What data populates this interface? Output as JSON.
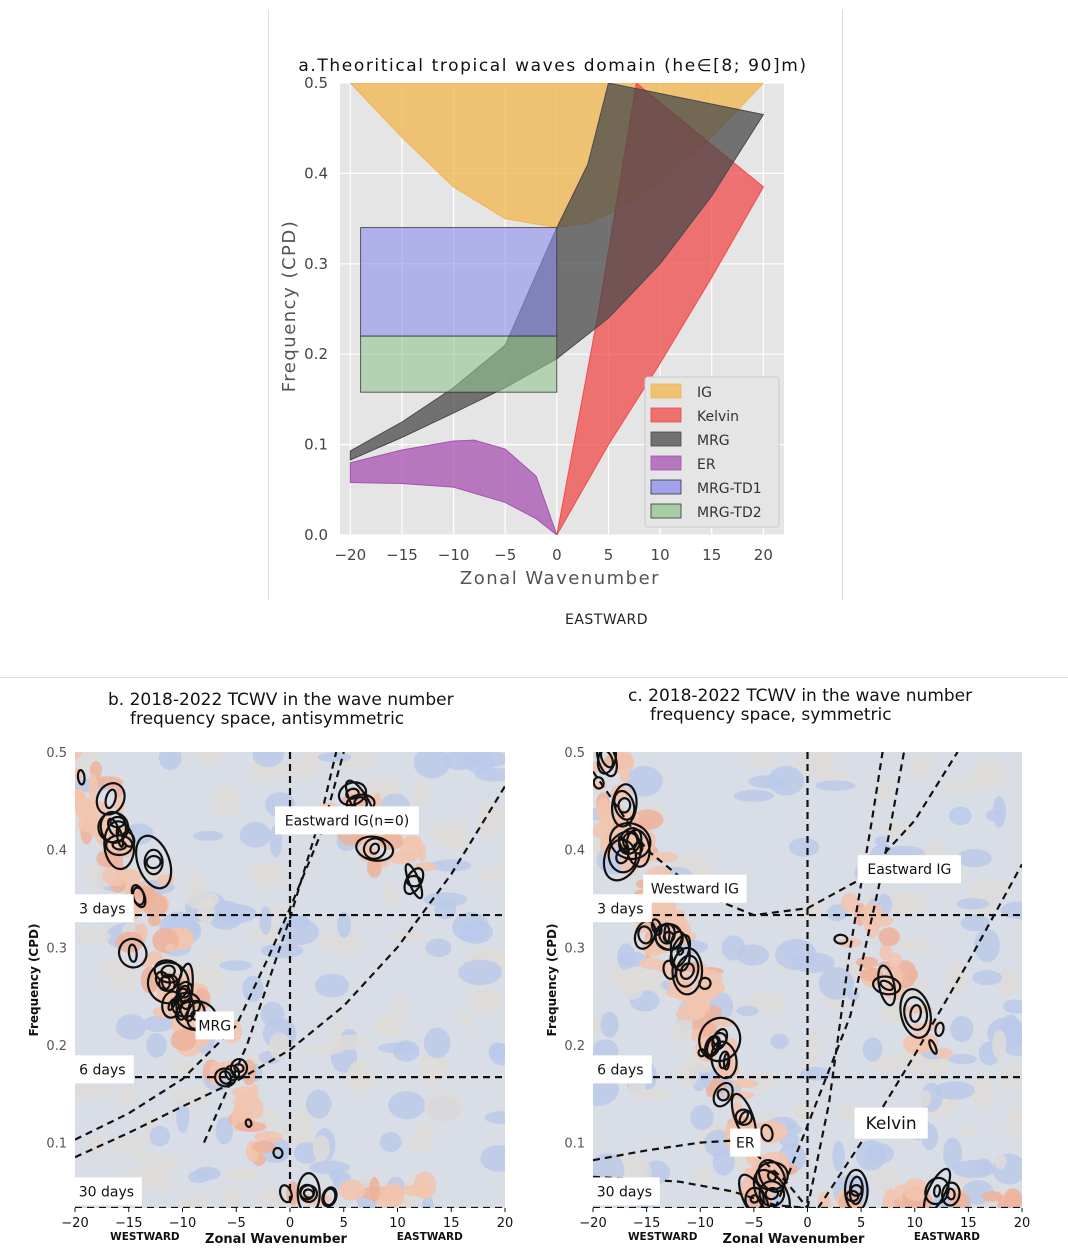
{
  "figure": {
    "eastward_caption": "EASTWARD"
  },
  "chart_data": [
    {
      "type": "area",
      "title": "a.Theoritical tropical waves domain (he∈[8; 90]m)",
      "xlabel": "Zonal Wavenumber",
      "ylabel": "Frequency (CPD)",
      "xlim": [
        -21,
        22
      ],
      "ylim": [
        0,
        0.5
      ],
      "xticks": [
        -20,
        -15,
        -10,
        -5,
        0,
        5,
        10,
        15,
        20
      ],
      "xtick_labels": [
        "−20",
        "−15",
        "−10",
        "−5",
        "0",
        "5",
        "10",
        "15",
        "20"
      ],
      "yticks": [
        0.0,
        0.1,
        0.2,
        0.3,
        0.4,
        0.5
      ],
      "ytick_labels": [
        "0.0",
        "0.1",
        "0.2",
        "0.3",
        "0.4",
        "0.5"
      ],
      "grid": true,
      "legend_position": "lower-right",
      "series": [
        {
          "name": "IG",
          "color": "#f0b44c",
          "upper": [
            [
              -20,
              0.5
            ],
            [
              20,
              0.5
            ]
          ],
          "lower": [
            [
              -20,
              0.5
            ],
            [
              -15,
              0.44
            ],
            [
              -10,
              0.385
            ],
            [
              -5,
              0.35
            ],
            [
              0,
              0.34
            ],
            [
              3,
              0.345
            ],
            [
              5,
              0.355
            ],
            [
              10,
              0.39
            ],
            [
              15,
              0.44
            ],
            [
              20,
              0.5
            ]
          ]
        },
        {
          "name": "Kelvin",
          "color": "#f04a4a",
          "upper": [
            [
              0,
              0
            ],
            [
              4,
              0.245
            ],
            [
              7.7,
              0.5
            ]
          ],
          "lower": [
            [
              0,
              0
            ],
            [
              5,
              0.1
            ],
            [
              10,
              0.19
            ],
            [
              15,
              0.285
            ],
            [
              20,
              0.385
            ]
          ]
        },
        {
          "name": "MRG",
          "color": "#4a4a4a",
          "upper": [
            [
              -20,
              0.093
            ],
            [
              -15,
              0.125
            ],
            [
              -10,
              0.163
            ],
            [
              -5,
              0.21
            ],
            [
              0,
              0.34
            ],
            [
              3,
              0.41
            ],
            [
              5,
              0.5
            ]
          ],
          "lower": [
            [
              -20,
              0.083
            ],
            [
              -15,
              0.108
            ],
            [
              -10,
              0.135
            ],
            [
              -5,
              0.163
            ],
            [
              0,
              0.195
            ],
            [
              5,
              0.24
            ],
            [
              10,
              0.3
            ],
            [
              15,
              0.375
            ],
            [
              20,
              0.465
            ]
          ]
        },
        {
          "name": "ER",
          "color": "#a551b0",
          "upper": [
            [
              -20,
              0.08
            ],
            [
              -15,
              0.094
            ],
            [
              -10,
              0.104
            ],
            [
              -8,
              0.105
            ],
            [
              -5,
              0.095
            ],
            [
              -2,
              0.065
            ],
            [
              0,
              0
            ]
          ],
          "lower": [
            [
              -20,
              0.058
            ],
            [
              -15,
              0.057
            ],
            [
              -10,
              0.053
            ],
            [
              -5,
              0.036
            ],
            [
              -2,
              0.018
            ],
            [
              0,
              0
            ]
          ]
        },
        {
          "name": "MRG-TD1",
          "color": "#8c8cee",
          "x": [
            -19,
            0
          ],
          "y": [
            0.22,
            0.34
          ]
        },
        {
          "name": "MRG-TD2",
          "color": "#8fc58f",
          "x": [
            -19,
            0
          ],
          "y": [
            0.158,
            0.22
          ]
        }
      ],
      "annotations": []
    },
    {
      "type": "contour",
      "title": "b. 2018-2022 TCWV in the wave number frequency space, antisymmetric",
      "title_lines": [
        "b. 2018-2022 TCWV in the wave number",
        "frequency space, antisymmetric"
      ],
      "xlabel": "Zonal Wavenumber",
      "ylabel": "Frequency (CPD)",
      "x_left_label": "WESTWARD",
      "x_right_label": "EASTWARD",
      "xlim": [
        -20,
        20
      ],
      "ylim": [
        0.033,
        0.5
      ],
      "xticks": [
        -20,
        -15,
        -10,
        -5,
        0,
        5,
        10,
        15,
        20
      ],
      "xtick_labels": [
        "−20",
        "−15",
        "−10",
        "−5",
        "0",
        "5",
        "10",
        "15",
        "20"
      ],
      "yticks": [
        0.1,
        0.2,
        0.3,
        0.4,
        0.5
      ],
      "ytick_labels": [
        "0.1",
        "0.2",
        "0.3",
        "0.4",
        "0.5"
      ],
      "period_lines": [
        {
          "label": "3 days",
          "freq": 0.333
        },
        {
          "label": "6 days",
          "freq": 0.167
        },
        {
          "label": "30 days",
          "freq": 0.033
        }
      ],
      "dispersion_curves": [
        {
          "name": "Eastward IG(n=0)",
          "points": [
            [
              -8,
              0.1
            ],
            [
              -4,
              0.2
            ],
            [
              0,
              0.33
            ],
            [
              3,
              0.44
            ],
            [
              4.3,
              0.5
            ]
          ]
        },
        {
          "name": "MRG",
          "points": [
            [
              -20,
              0.085
            ],
            [
              -15,
              0.11
            ],
            [
              -10,
              0.137
            ],
            [
              -5,
              0.163
            ],
            [
              0,
              0.195
            ],
            [
              5,
              0.24
            ],
            [
              10,
              0.3
            ],
            [
              15,
              0.375
            ],
            [
              20,
              0.465
            ]
          ]
        },
        {
          "name": "",
          "points": [
            [
              -20,
              0.103
            ],
            [
              -15,
              0.13
            ],
            [
              -10,
              0.165
            ],
            [
              -5,
              0.22
            ],
            [
              -2,
              0.29
            ],
            [
              0,
              0.34
            ],
            [
              3,
              0.42
            ],
            [
              5,
              0.5
            ]
          ]
        }
      ],
      "annotations": [
        {
          "text": "Eastward IG(n=0)",
          "x": 5.3,
          "y": 0.43
        },
        {
          "text": "MRG",
          "x": -7,
          "y": 0.22
        },
        {
          "text": "3 days",
          "x": -19,
          "y": 0.34
        },
        {
          "text": "6 days",
          "x": -19,
          "y": 0.175
        },
        {
          "text": "30 days",
          "x": -19,
          "y": 0.05
        }
      ]
    },
    {
      "type": "contour",
      "title": "c. 2018-2022 TCWV in the wave number frequency space, symmetric",
      "title_lines": [
        "c. 2018-2022 TCWV in the wave number",
        "frequency space, symmetric"
      ],
      "xlabel": "Zonal Wavenumber",
      "ylabel": "Frequency (CPD)",
      "x_left_label": "WESTWARD",
      "x_right_label": "EASTWARD",
      "xlim": [
        -20,
        20
      ],
      "ylim": [
        0.033,
        0.5
      ],
      "xticks": [
        -20,
        -15,
        -10,
        -5,
        0,
        5,
        10,
        15,
        20
      ],
      "xtick_labels": [
        "−20",
        "−15",
        "−10",
        "−5",
        "0",
        "5",
        "10",
        "15",
        "20"
      ],
      "yticks": [
        0.1,
        0.2,
        0.3,
        0.4,
        0.5
      ],
      "ytick_labels": [
        "0.1",
        "0.2",
        "0.3",
        "0.4",
        "0.5"
      ],
      "period_lines": [
        {
          "label": "3 days",
          "freq": 0.333
        },
        {
          "label": "6 days",
          "freq": 0.167
        },
        {
          "label": "30 days",
          "freq": 0.033
        }
      ],
      "dispersion_curves": [
        {
          "name": "Westward IG",
          "points": [
            [
              -20,
              0.48
            ],
            [
              -15,
              0.4
            ],
            [
              -10,
              0.355
            ],
            [
              -5,
              0.333
            ],
            [
              0,
              0.34
            ],
            [
              5,
              0.37
            ],
            [
              10,
              0.43
            ],
            [
              14,
              0.5
            ]
          ]
        },
        {
          "name": "Eastward IG",
          "points": [
            [
              0,
              0.033
            ],
            [
              2,
              0.14
            ],
            [
              4,
              0.3
            ],
            [
              6,
              0.43
            ],
            [
              7,
              0.5
            ]
          ]
        },
        {
          "name": "Kelvin",
          "points": [
            [
              1,
              0.033
            ],
            [
              5,
              0.1
            ],
            [
              10,
              0.19
            ],
            [
              15,
              0.285
            ],
            [
              20,
              0.385
            ]
          ]
        },
        {
          "name": "ER",
          "points": [
            [
              -20,
              0.082
            ],
            [
              -15,
              0.092
            ],
            [
              -10,
              0.1
            ],
            [
              -7,
              0.102
            ],
            [
              -5,
              0.09
            ],
            [
              -2,
              0.06
            ],
            [
              0,
              0.033
            ]
          ]
        },
        {
          "name": "",
          "points": [
            [
              -20,
              0.065
            ],
            [
              -12,
              0.06
            ],
            [
              -7,
              0.05
            ],
            [
              -3,
              0.036
            ],
            [
              0,
              0.033
            ]
          ]
        },
        {
          "name": "",
          "points": [
            [
              -3,
              0.033
            ],
            [
              4,
              0.23
            ],
            [
              7,
              0.38
            ],
            [
              9,
              0.5
            ]
          ]
        }
      ],
      "annotations": [
        {
          "text": "Westward IG",
          "x": -10.5,
          "y": 0.36
        },
        {
          "text": "Eastward IG",
          "x": 9.5,
          "y": 0.38
        },
        {
          "text": "Kelvin",
          "x": 7.8,
          "y": 0.12
        },
        {
          "text": "ER",
          "x": -5.8,
          "y": 0.1
        },
        {
          "text": "3 days",
          "x": -19,
          "y": 0.34
        },
        {
          "text": "6 days",
          "x": -19,
          "y": 0.175
        },
        {
          "text": "30 days",
          "x": -19,
          "y": 0.05
        }
      ]
    }
  ]
}
